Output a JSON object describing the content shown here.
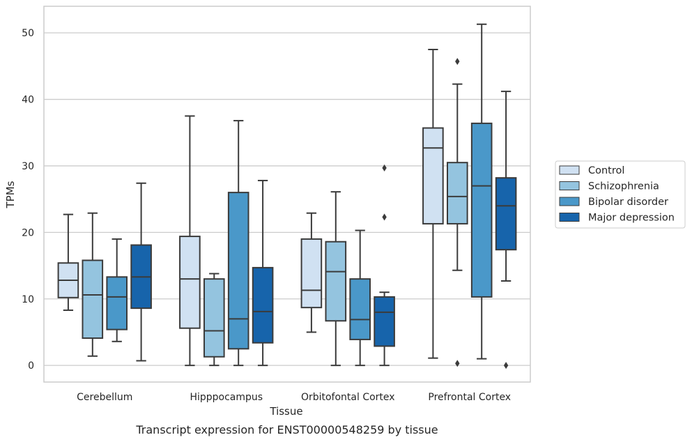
{
  "caption": "Transcript expression for ENST00000548259 by tissue",
  "chart_data": {
    "type": "box",
    "xlabel": "Tissue",
    "ylabel": "TPMs",
    "ylim": [
      -2.5,
      54
    ],
    "yticks": [
      0,
      10,
      20,
      30,
      40,
      50
    ],
    "grid": true,
    "legend_position": "right",
    "categories": [
      "Cerebellum",
      "Hipppocampus",
      "Orbitofontal Cortex",
      "Prefrontal Cortex"
    ],
    "series": [
      {
        "name": "Control",
        "color": "#d0e1f2",
        "boxes": [
          {
            "whislo": 8.3,
            "q1": 10.2,
            "med": 12.8,
            "q3": 15.4,
            "whishi": 22.7,
            "fliers": []
          },
          {
            "whislo": 0.0,
            "q1": 5.6,
            "med": 13.0,
            "q3": 19.4,
            "whishi": 37.5,
            "fliers": []
          },
          {
            "whislo": 5.0,
            "q1": 8.7,
            "med": 11.3,
            "q3": 19.0,
            "whishi": 22.9,
            "fliers": []
          },
          {
            "whislo": 1.1,
            "q1": 21.3,
            "med": 32.7,
            "q3": 35.7,
            "whishi": 47.5,
            "fliers": []
          }
        ]
      },
      {
        "name": "Schizophrenia",
        "color": "#94c4df",
        "boxes": [
          {
            "whislo": 1.4,
            "q1": 4.1,
            "med": 10.6,
            "q3": 15.8,
            "whishi": 22.9,
            "fliers": []
          },
          {
            "whislo": 0.0,
            "q1": 1.3,
            "med": 5.2,
            "q3": 13.0,
            "whishi": 13.8,
            "fliers": []
          },
          {
            "whislo": 0.0,
            "q1": 6.7,
            "med": 14.1,
            "q3": 18.6,
            "whishi": 26.1,
            "fliers": []
          },
          {
            "whislo": 14.3,
            "q1": 21.3,
            "med": 25.4,
            "q3": 30.5,
            "whishi": 42.3,
            "fliers": [
              45.7,
              0.3
            ]
          }
        ]
      },
      {
        "name": "Bipolar disorder",
        "color": "#4a98c9",
        "boxes": [
          {
            "whislo": 3.6,
            "q1": 5.4,
            "med": 10.3,
            "q3": 13.3,
            "whishi": 19.0,
            "fliers": []
          },
          {
            "whislo": 0.0,
            "q1": 2.5,
            "med": 7.0,
            "q3": 26.0,
            "whishi": 36.8,
            "fliers": []
          },
          {
            "whislo": 0.0,
            "q1": 3.9,
            "med": 6.9,
            "q3": 13.0,
            "whishi": 20.3,
            "fliers": []
          },
          {
            "whislo": 1.0,
            "q1": 10.3,
            "med": 27.0,
            "q3": 36.4,
            "whishi": 51.3,
            "fliers": []
          }
        ]
      },
      {
        "name": "Major depression",
        "color": "#1764ab",
        "boxes": [
          {
            "whislo": 0.7,
            "q1": 8.6,
            "med": 13.3,
            "q3": 18.1,
            "whishi": 27.4,
            "fliers": []
          },
          {
            "whislo": 0.0,
            "q1": 3.4,
            "med": 8.1,
            "q3": 14.7,
            "whishi": 27.8,
            "fliers": []
          },
          {
            "whislo": 0.0,
            "q1": 2.9,
            "med": 8.0,
            "q3": 10.3,
            "whishi": 11.0,
            "fliers": [
              29.7,
              22.3
            ]
          },
          {
            "whislo": 12.7,
            "q1": 17.4,
            "med": 24.0,
            "q3": 28.2,
            "whishi": 41.2,
            "fliers": [
              0.0
            ]
          }
        ]
      }
    ]
  }
}
